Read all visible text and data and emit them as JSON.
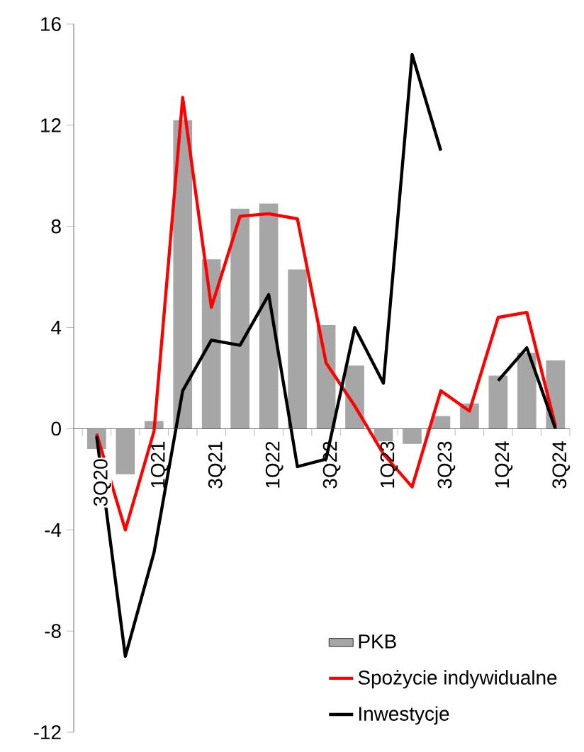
{
  "chart_data": {
    "type": "bar",
    "categories": [
      "3Q20",
      null,
      "1Q21",
      null,
      "3Q21",
      null,
      "1Q22",
      null,
      "3Q22",
      null,
      "1Q23",
      null,
      "3Q23",
      null,
      "1Q24",
      null,
      "3Q24"
    ],
    "series": [
      {
        "name": "PKB",
        "color": "#a6a6a6",
        "values": [
          -0.8,
          -1.8,
          0.3,
          12.2,
          6.7,
          8.7,
          8.9,
          6.3,
          4.1,
          2.5,
          -0.5,
          -0.6,
          0.5,
          1.0,
          2.1,
          3.0,
          2.7
        ]
      },
      {
        "name": "Spożycie indywidualne",
        "type": "line",
        "color": "#ff0000",
        "values": [
          -0.2,
          -4.0,
          -0.1,
          13.1,
          4.8,
          8.4,
          8.5,
          8.3,
          2.6,
          0.9,
          -1.0,
          -2.3,
          1.5,
          0.7,
          4.4,
          4.6,
          0.1
        ]
      },
      {
        "name": "Inwestycje",
        "type": "line",
        "color": "#000000",
        "values": [
          -0.3,
          -9.0,
          -4.9,
          1.5,
          3.5,
          3.3,
          5.3,
          -1.5,
          -1.2,
          4.0,
          1.8,
          14.8,
          11.0,
          null,
          1.9,
          3.2,
          0.0
        ]
      }
    ],
    "ylim": [
      -12,
      16
    ],
    "yticks": [
      -12,
      -8,
      -4,
      0,
      4,
      8,
      12,
      16
    ],
    "legend": "bottom right",
    "grid": false,
    "marker": "none",
    "line_style": "solid"
  }
}
